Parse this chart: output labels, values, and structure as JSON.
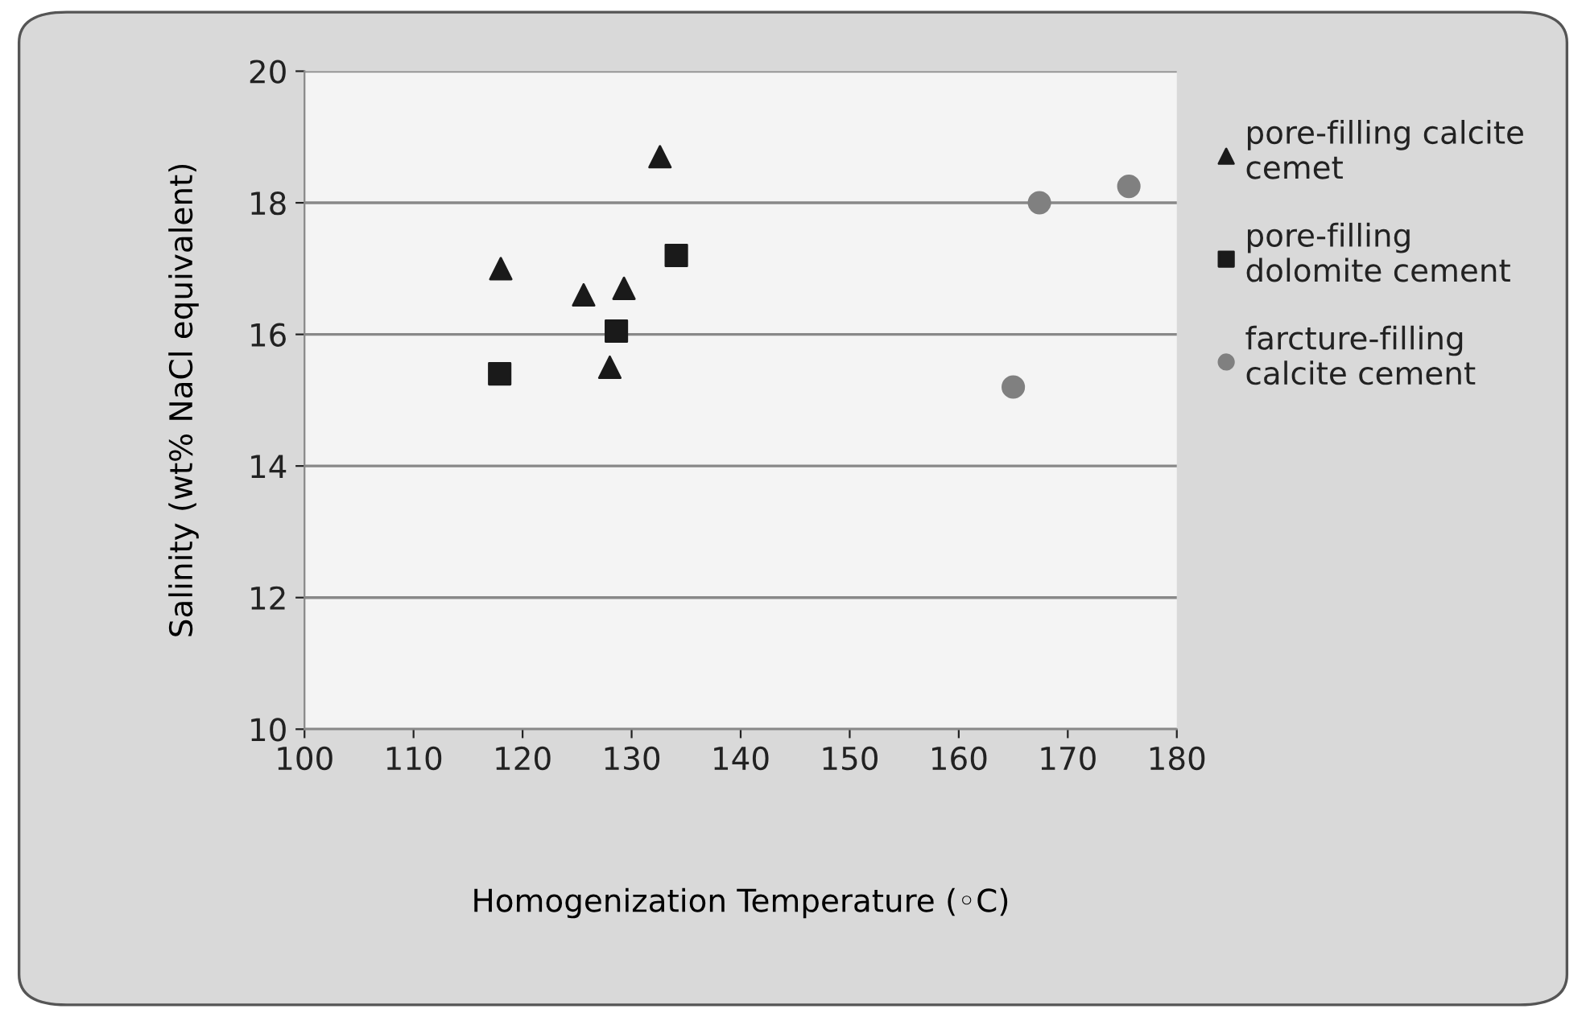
{
  "chart_data": {
    "type": "scatter",
    "xlabel": "Homogenization Temperature (◦C)",
    "ylabel": "Salinity (wt% NaCl equivalent)",
    "xlim": [
      100,
      180
    ],
    "xticks": [
      100,
      110,
      120,
      130,
      140,
      150,
      160,
      170,
      180
    ],
    "ylim": [
      10,
      20
    ],
    "yticks": [
      10,
      12,
      14,
      16,
      18,
      20
    ],
    "grid": "y",
    "legend": "right",
    "series": [
      {
        "name": "pore-filling calcite\ncemet",
        "color": "#1a1a1a",
        "marker": "triangle",
        "x": [
          118.0,
          125.6,
          129.3,
          128.0,
          132.6
        ],
        "values": [
          17.0,
          16.6,
          16.7,
          15.5,
          18.7
        ]
      },
      {
        "name": "pore-filling\ndolomite cement",
        "color": "#1a1a1a",
        "marker": "square",
        "x": [
          117.9,
          128.6,
          134.1
        ],
        "values": [
          15.4,
          16.05,
          17.2
        ]
      },
      {
        "name": "farcture-filling\ncalcite cement",
        "color": "#808080",
        "marker": "circle",
        "x": [
          167.4,
          175.6,
          165.0
        ],
        "values": [
          18.0,
          18.25,
          15.2
        ]
      }
    ]
  }
}
